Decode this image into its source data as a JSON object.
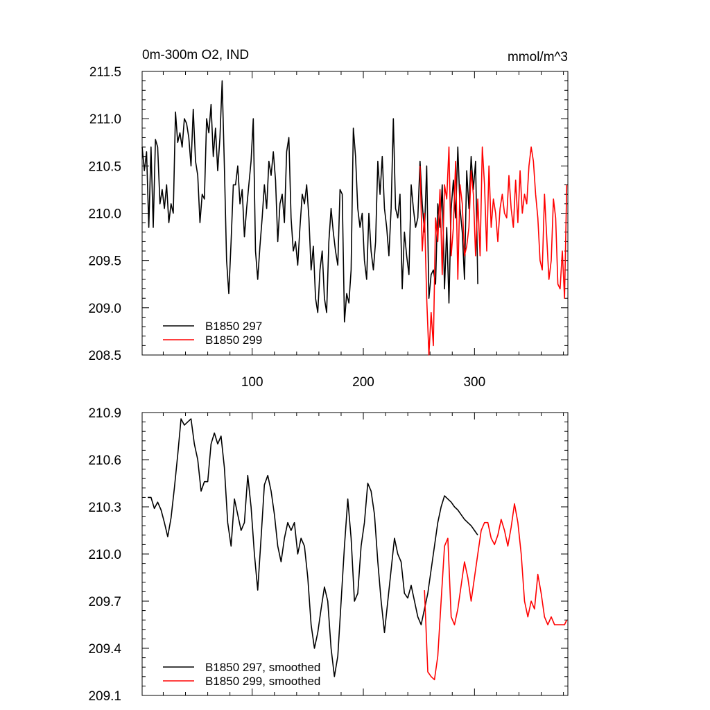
{
  "title_left": "0m-300m O2, IND",
  "title_right": "mmol/m^3",
  "colors": {
    "black": "#000000",
    "red": "#ff0000"
  },
  "chart_data": [
    {
      "type": "line",
      "panel": "top",
      "xlim": [
        1,
        384
      ],
      "ylim": [
        208.5,
        211.5
      ],
      "xticks": [
        100,
        200,
        300
      ],
      "xtick_labels": [
        "100",
        "200",
        "300"
      ],
      "yticks": [
        208.5,
        209.0,
        209.5,
        210.0,
        210.5,
        211.0,
        211.5
      ],
      "ytick_labels": [
        "208.5",
        "209.0",
        "209.5",
        "210.0",
        "210.5",
        "211.0",
        "211.5"
      ],
      "legend_placement": "bottom-left",
      "series": [
        {
          "name": "B1850 297",
          "color": "#000000",
          "x": [
            1,
            3,
            5,
            7,
            9,
            11,
            13,
            15,
            17,
            19,
            21,
            23,
            25,
            27,
            29,
            31,
            33,
            35,
            37,
            39,
            41,
            43,
            45,
            47,
            49,
            51,
            53,
            55,
            57,
            59,
            61,
            63,
            65,
            67,
            69,
            71,
            73,
            75,
            77,
            79,
            81,
            83,
            85,
            87,
            89,
            91,
            93,
            95,
            97,
            99,
            101,
            103,
            105,
            107,
            109,
            111,
            113,
            115,
            117,
            119,
            121,
            123,
            125,
            127,
            129,
            131,
            133,
            135,
            137,
            139,
            141,
            143,
            145,
            147,
            149,
            151,
            153,
            155,
            157,
            159,
            161,
            163,
            165,
            167,
            169,
            171,
            173,
            175,
            177,
            179,
            181,
            183,
            185,
            187,
            189,
            191,
            193,
            195,
            197,
            199,
            201,
            203,
            205,
            207,
            209,
            211,
            213,
            215,
            217,
            219,
            221,
            223,
            225,
            227,
            229,
            231,
            233,
            235,
            237,
            239,
            241,
            243,
            245,
            247,
            249,
            251,
            253,
            255,
            257,
            259,
            261,
            263,
            265,
            267,
            269,
            271,
            273,
            275,
            277,
            279,
            281,
            283,
            285,
            287,
            289,
            291,
            293,
            295,
            297,
            299,
            301,
            303
          ],
          "values": [
            210.7,
            210.45,
            210.65,
            209.85,
            210.7,
            209.85,
            210.78,
            210.7,
            210.1,
            210.25,
            210.05,
            210.3,
            209.9,
            210.1,
            210.0,
            211.07,
            210.75,
            210.85,
            210.7,
            211.0,
            210.95,
            210.8,
            210.5,
            211.1,
            210.55,
            210.4,
            209.9,
            210.2,
            210.15,
            211.0,
            210.85,
            211.15,
            210.6,
            210.9,
            210.45,
            210.8,
            211.4,
            210.5,
            209.5,
            209.15,
            209.7,
            210.3,
            210.3,
            210.5,
            210.1,
            210.25,
            209.75,
            210.05,
            210.3,
            210.55,
            211.0,
            209.6,
            209.3,
            209.65,
            209.95,
            210.3,
            210.05,
            210.55,
            210.4,
            210.65,
            210.35,
            209.7,
            210.1,
            210.2,
            209.9,
            210.65,
            210.8,
            209.95,
            209.6,
            209.7,
            209.45,
            209.85,
            210.2,
            210.1,
            210.3,
            209.95,
            209.4,
            209.65,
            209.1,
            208.95,
            209.4,
            209.6,
            209.1,
            208.95,
            209.7,
            210.05,
            209.8,
            209.6,
            209.45,
            210.25,
            210.2,
            208.85,
            209.15,
            209.05,
            209.4,
            210.9,
            210.6,
            210.05,
            209.85,
            210.0,
            209.5,
            209.3,
            210.0,
            209.6,
            209.4,
            209.7,
            210.55,
            210.2,
            210.6,
            210.05,
            209.85,
            209.55,
            210.05,
            211.0,
            210.05,
            209.95,
            210.2,
            209.2,
            209.8,
            209.55,
            209.35,
            210.3,
            210.05,
            209.85,
            209.95,
            210.55,
            210.1,
            209.8,
            210.5,
            209.1,
            209.35,
            209.4,
            209.25,
            210.1,
            209.85,
            210.3,
            209.2,
            209.85,
            209.05,
            210.05,
            210.35,
            209.95,
            210.7,
            210.05,
            209.8,
            209.3,
            210.45,
            210.05,
            210.6,
            210.25,
            210.55,
            209.25
          ]
        },
        {
          "name": "B1850 299",
          "color": "#ff0000",
          "x": [
            251,
            253,
            255,
            257,
            259,
            261,
            263,
            265,
            267,
            269,
            271,
            273,
            275,
            277,
            279,
            281,
            283,
            285,
            287,
            289,
            291,
            293,
            295,
            297,
            299,
            301,
            303,
            305,
            307,
            309,
            311,
            313,
            315,
            317,
            319,
            321,
            323,
            325,
            327,
            329,
            331,
            333,
            335,
            337,
            339,
            341,
            343,
            345,
            347,
            349,
            351,
            353,
            355,
            357,
            359,
            361,
            363,
            365,
            367,
            369,
            371,
            373,
            375,
            377,
            379,
            381,
            383
          ],
          "values": [
            210.5,
            209.6,
            210.0,
            209.1,
            208.5,
            208.95,
            208.6,
            209.95,
            209.7,
            210.25,
            209.35,
            210.3,
            210.15,
            210.7,
            209.55,
            209.85,
            210.55,
            209.3,
            210.3,
            210.1,
            209.55,
            209.65,
            209.85,
            210.45,
            210.2,
            209.55,
            210.15,
            209.55,
            210.7,
            210.3,
            209.6,
            210.5,
            209.85,
            210.15,
            210.0,
            209.7,
            210.05,
            210.2,
            210.0,
            209.95,
            210.4,
            210.05,
            209.85,
            210.35,
            209.9,
            210.45,
            210.0,
            210.2,
            210.1,
            210.5,
            210.7,
            210.55,
            210.2,
            209.95,
            209.5,
            209.4,
            210.2,
            209.75,
            209.3,
            209.5,
            210.15,
            209.95,
            209.25,
            209.2,
            209.6,
            209.1,
            210.3
          ]
        }
      ]
    },
    {
      "type": "line",
      "panel": "bottom",
      "xlim": [
        1,
        384
      ],
      "ylim": [
        209.1,
        210.9
      ],
      "xticks": [
        100,
        200,
        300
      ],
      "xtick_labels": [],
      "yticks": [
        209.1,
        209.4,
        209.7,
        210.0,
        210.3,
        210.6,
        210.9
      ],
      "ytick_labels": [
        "209.1",
        "209.4",
        "209.7",
        "210.0",
        "210.3",
        "210.6",
        "210.9"
      ],
      "legend_placement": "bottom-left",
      "series": [
        {
          "name": "B1850 297, smoothed",
          "color": "#000000",
          "x": [
            6,
            9,
            12,
            15,
            18,
            21,
            24,
            27,
            30,
            33,
            36,
            39,
            42,
            45,
            48,
            51,
            54,
            57,
            60,
            63,
            66,
            69,
            72,
            75,
            78,
            81,
            84,
            87,
            90,
            93,
            96,
            99,
            102,
            105,
            108,
            111,
            114,
            117,
            120,
            123,
            126,
            129,
            132,
            135,
            138,
            141,
            144,
            147,
            150,
            153,
            156,
            159,
            162,
            165,
            168,
            171,
            174,
            177,
            180,
            183,
            186,
            189,
            192,
            195,
            198,
            201,
            204,
            207,
            210,
            213,
            216,
            219,
            222,
            225,
            228,
            231,
            234,
            237,
            240,
            243,
            246,
            249,
            252,
            255,
            258,
            261,
            264,
            267,
            270,
            273,
            276,
            279,
            282,
            285,
            288,
            291,
            294,
            297,
            300,
            303
          ],
          "values": [
            210.36,
            210.36,
            210.29,
            210.33,
            210.28,
            210.2,
            210.11,
            210.23,
            210.42,
            210.63,
            210.86,
            210.82,
            210.84,
            210.86,
            210.7,
            210.6,
            210.4,
            210.46,
            210.46,
            210.7,
            210.77,
            210.7,
            210.75,
            210.55,
            210.2,
            210.05,
            210.35,
            210.25,
            210.15,
            210.2,
            210.5,
            210.3,
            210.0,
            209.77,
            210.1,
            210.44,
            210.5,
            210.4,
            210.25,
            210.05,
            209.95,
            210.1,
            210.2,
            210.15,
            210.2,
            210.0,
            210.1,
            210.05,
            209.85,
            209.55,
            209.4,
            209.5,
            209.65,
            209.79,
            209.7,
            209.4,
            209.22,
            209.35,
            209.7,
            210.05,
            210.35,
            210.1,
            209.7,
            209.75,
            210.05,
            210.2,
            210.45,
            210.4,
            210.25,
            209.95,
            209.7,
            209.5,
            209.7,
            209.9,
            210.1,
            210.0,
            209.95,
            209.75,
            209.72,
            209.8,
            209.7,
            209.6,
            209.55,
            209.65,
            209.75,
            209.9,
            210.05,
            210.2,
            210.3,
            210.37,
            210.35,
            210.33,
            210.3,
            210.28,
            210.25,
            210.22,
            210.2,
            210.18,
            210.15,
            210.12
          ]
        },
        {
          "name": "B1850 299, smoothed",
          "color": "#ff0000",
          "x": [
            255,
            258,
            261,
            264,
            267,
            270,
            273,
            276,
            279,
            282,
            285,
            288,
            291,
            294,
            297,
            300,
            303,
            306,
            309,
            312,
            315,
            318,
            321,
            324,
            327,
            330,
            333,
            336,
            339,
            342,
            345,
            348,
            351,
            354,
            357,
            360,
            363,
            366,
            369,
            372,
            375,
            378,
            381,
            383
          ],
          "values": [
            209.77,
            209.25,
            209.22,
            209.2,
            209.35,
            209.7,
            210.05,
            210.1,
            209.6,
            209.55,
            209.65,
            209.8,
            209.95,
            209.85,
            209.7,
            209.85,
            210.0,
            210.15,
            210.2,
            210.2,
            210.1,
            210.06,
            210.12,
            210.22,
            210.15,
            210.05,
            210.17,
            210.32,
            210.2,
            210.0,
            209.7,
            209.6,
            209.7,
            209.65,
            209.87,
            209.75,
            209.6,
            209.55,
            209.6,
            209.55,
            209.55,
            209.55,
            209.55,
            209.58
          ]
        }
      ]
    }
  ]
}
